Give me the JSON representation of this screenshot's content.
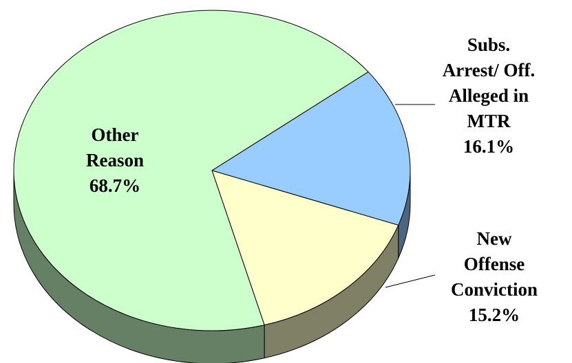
{
  "chart_data": {
    "type": "pie",
    "title": "",
    "slices": [
      {
        "label": [
          "Other",
          "Reason"
        ],
        "value": 68.7,
        "value_text": "68.7%",
        "color": "#ccffcc",
        "side_color": "#668066"
      },
      {
        "label": [
          "Subs.",
          "Arrest/ Off.",
          "Alleged in",
          "MTR"
        ],
        "value": 16.1,
        "value_text": "16.1%",
        "color": "#99ccff",
        "side_color": "#4d6680"
      },
      {
        "label": [
          "New",
          "Offense",
          "Conviction"
        ],
        "value": 15.2,
        "value_text": "15.2%",
        "color": "#ffffcc",
        "side_color": "#808066"
      }
    ],
    "style": "3d",
    "legend": "none"
  }
}
